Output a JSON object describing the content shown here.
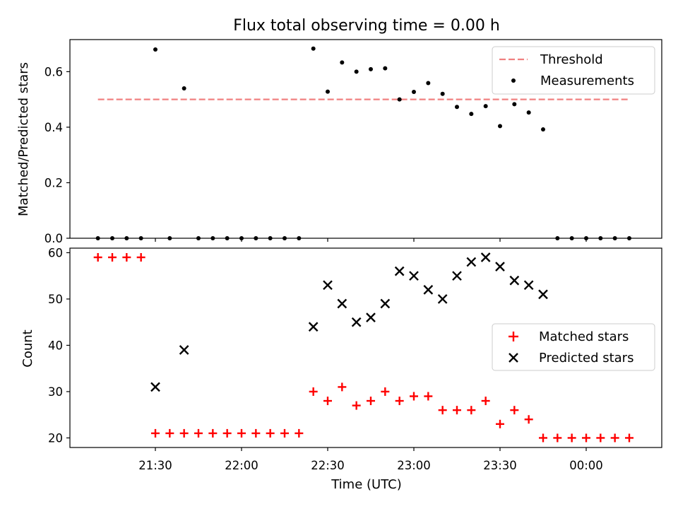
{
  "chart_data": [
    {
      "type": "scatter",
      "title": "Flux total observing time = 0.00 h",
      "xlabel": "",
      "ylabel": "Matched/Predicted stars",
      "ylim": [
        0,
        0.72
      ],
      "yticks": [
        "0.0",
        "0.2",
        "0.4",
        "0.6"
      ],
      "legend": {
        "placement": "top-right",
        "entries": [
          "Threshold",
          "Measurements"
        ]
      },
      "threshold": {
        "name": "Threshold",
        "value": 0.5,
        "x_start": "21:10",
        "x_end": "00:15",
        "color": "#f08080",
        "style": "dashed"
      },
      "series": [
        {
          "name": "Measurements",
          "color": "#000000",
          "marker": "dot",
          "x": [
            "21:10",
            "21:15",
            "21:20",
            "21:25",
            "21:30",
            "21:35",
            "21:40",
            "21:45",
            "21:50",
            "21:55",
            "22:00",
            "22:05",
            "22:10",
            "22:15",
            "22:20",
            "22:25",
            "22:30",
            "22:35",
            "22:40",
            "22:45",
            "22:50",
            "22:55",
            "23:00",
            "23:05",
            "23:10",
            "23:15",
            "23:20",
            "23:25",
            "23:30",
            "23:35",
            "23:40",
            "23:45",
            "23:50",
            "23:55",
            "00:00",
            "00:05",
            "00:10",
            "00:15"
          ],
          "values": [
            0,
            0,
            0,
            0,
            0.68,
            0,
            0.54,
            0,
            0,
            0,
            0,
            0,
            0,
            0,
            0,
            0.683,
            0.528,
            0.633,
            0.6,
            0.609,
            0.612,
            0.5,
            0.527,
            0.559,
            0.52,
            0.473,
            0.448,
            0.476,
            0.404,
            0.483,
            0.453,
            0.392,
            0,
            0,
            0,
            0,
            0,
            0
          ]
        }
      ]
    },
    {
      "type": "scatter",
      "xlabel": "Time (UTC)",
      "ylabel": "Count",
      "ylim": [
        18,
        61
      ],
      "yticks": [
        "20",
        "30",
        "40",
        "50",
        "60"
      ],
      "xlim": [
        "21:00",
        "00:25"
      ],
      "xticks": [
        "21:30",
        "22:00",
        "22:30",
        "23:00",
        "23:30",
        "00:00"
      ],
      "legend": {
        "placement": "center-right",
        "entries": [
          "Matched stars",
          "Predicted stars"
        ]
      },
      "series": [
        {
          "name": "Matched stars",
          "color": "#ff0000",
          "marker": "plus",
          "x": [
            "21:10",
            "21:15",
            "21:20",
            "21:25",
            "21:30",
            "21:35",
            "21:40",
            "21:45",
            "21:50",
            "21:55",
            "22:00",
            "22:05",
            "22:10",
            "22:15",
            "22:20",
            "22:25",
            "22:30",
            "22:35",
            "22:40",
            "22:45",
            "22:50",
            "22:55",
            "23:00",
            "23:05",
            "23:10",
            "23:15",
            "23:20",
            "23:25",
            "23:30",
            "23:35",
            "23:40",
            "23:45",
            "23:50",
            "23:55",
            "00:00",
            "00:05",
            "00:10",
            "00:15"
          ],
          "values": [
            59,
            59,
            59,
            59,
            21,
            21,
            21,
            21,
            21,
            21,
            21,
            21,
            21,
            21,
            21,
            30,
            28,
            31,
            27,
            28,
            30,
            28,
            29,
            29,
            26,
            26,
            26,
            28,
            23,
            26,
            24,
            20,
            20,
            20,
            20,
            20,
            20,
            20
          ]
        },
        {
          "name": "Predicted stars",
          "color": "#000000",
          "marker": "x",
          "x": [
            "21:30",
            "21:40",
            "22:25",
            "22:30",
            "22:35",
            "22:40",
            "22:45",
            "22:50",
            "22:55",
            "23:00",
            "23:05",
            "23:10",
            "23:15",
            "23:20",
            "23:25",
            "23:30",
            "23:35",
            "23:40",
            "23:45"
          ],
          "values": [
            31,
            39,
            44,
            53,
            49,
            45,
            46,
            49,
            56,
            55,
            52,
            50,
            55,
            58,
            59,
            57,
            54,
            53,
            51
          ]
        }
      ]
    }
  ]
}
